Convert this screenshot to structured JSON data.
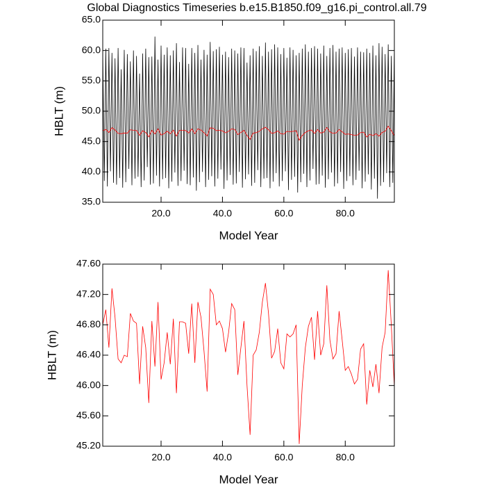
{
  "chart_data": [
    {
      "type": "line",
      "title": "Global Diagnostics Timeseries b.e15.B1850.f09_g16.pi_control.all.79",
      "xlabel": "Model Year",
      "ylabel": "HBLT (m)",
      "xlim": [
        1,
        96
      ],
      "ylim": [
        35,
        65
      ],
      "xticks": [
        {
          "value": 20,
          "label": "20.0"
        },
        {
          "value": 40,
          "label": "40.0"
        },
        {
          "value": 60,
          "label": "60.0"
        },
        {
          "value": 80,
          "label": "80.0"
        }
      ],
      "yticks": [
        {
          "value": 35,
          "label": "35.0"
        },
        {
          "value": 40,
          "label": "40.0"
        },
        {
          "value": 45,
          "label": "45.0"
        },
        {
          "value": 50,
          "label": "50.0"
        },
        {
          "value": 55,
          "label": "55.0"
        },
        {
          "value": 60,
          "label": "60.0"
        },
        {
          "value": 65,
          "label": "65.0"
        }
      ],
      "series": [
        {
          "color": "#000000",
          "x": [
            1,
            1.5,
            2,
            2.5,
            3,
            3.5,
            4,
            4.5,
            5,
            5.5,
            6,
            6.5,
            7,
            7.5,
            8,
            8.5,
            9,
            9.5,
            10,
            10.5,
            11,
            11.5,
            12,
            12.5,
            13,
            13.5,
            14,
            14.5,
            15,
            15.5,
            16,
            16.5,
            17,
            17.5,
            18,
            18.5,
            19,
            19.5,
            20,
            20.5,
            21,
            21.5,
            22,
            22.5,
            23,
            23.5,
            24,
            24.5,
            25,
            25.5,
            26,
            26.5,
            27,
            27.5,
            28,
            28.5,
            29,
            29.5,
            30,
            30.5,
            31,
            31.5,
            32,
            32.5,
            33,
            33.5,
            34,
            34.5,
            35,
            35.5,
            36,
            36.5,
            37,
            37.5,
            38,
            38.5,
            39,
            39.5,
            40,
            40.5,
            41,
            41.5,
            42,
            42.5,
            43,
            43.5,
            44,
            44.5,
            45,
            45.5,
            46,
            46.5,
            47,
            47.5,
            48,
            48.5,
            49,
            49.5,
            50,
            50.5,
            51,
            51.5,
            52,
            52.5,
            53,
            53.5,
            54,
            54.5,
            55,
            55.5,
            56,
            56.5,
            57,
            57.5,
            58,
            58.5,
            59,
            59.5,
            60,
            60.5,
            61,
            61.5,
            62,
            62.5,
            63,
            63.5,
            64,
            64.5,
            65,
            65.5,
            66,
            66.5,
            67,
            67.5,
            68,
            68.5,
            69,
            69.5,
            70,
            70.5,
            71,
            71.5,
            72,
            72.5,
            73,
            73.5,
            74,
            74.5,
            75,
            75.5,
            76,
            76.5,
            77,
            77.5,
            78,
            78.5,
            79,
            79.5,
            80,
            80.5,
            81,
            81.5,
            82,
            82.5,
            83,
            83.5,
            84,
            84.5,
            85,
            85.5,
            86,
            86.5,
            87,
            87.5,
            88,
            88.5,
            89,
            89.5,
            90,
            90.5,
            91,
            91.5,
            92,
            92.5,
            93,
            93.5,
            94,
            94.5,
            95,
            95.5,
            96
          ],
          "values": [
            59.8,
            38.5,
            60.3,
            37.6,
            60.4,
            40.1,
            59.6,
            38.2,
            58.7,
            37.9,
            60.4,
            39.0,
            56.9,
            37.4,
            60.1,
            38.3,
            59.4,
            40.5,
            58.2,
            37.8,
            60.0,
            38.9,
            59.1,
            39.2,
            56.2,
            37.5,
            59.5,
            38.6,
            60.3,
            40.8,
            58.9,
            37.9,
            59.0,
            38.1,
            62.3,
            39.4,
            58.5,
            37.6,
            60.8,
            38.8,
            59.3,
            39.0,
            60.5,
            37.3,
            59.2,
            38.4,
            60.0,
            39.9,
            61.2,
            37.7,
            58.1,
            38.5,
            60.5,
            40.2,
            60.4,
            38.0,
            57.8,
            37.8,
            60.4,
            39.1,
            59.6,
            36.9,
            60.9,
            38.3,
            58.5,
            40.0,
            60.1,
            37.5,
            59.3,
            38.7,
            61.4,
            39.3,
            59.9,
            37.6,
            60.2,
            38.9,
            60.6,
            40.4,
            59.3,
            37.2,
            59.8,
            38.6,
            58.9,
            39.5,
            60.3,
            37.9,
            60.0,
            38.1,
            59.5,
            40.0,
            60.5,
            37.4,
            60.4,
            38.8,
            58.0,
            39.6,
            59.2,
            37.7,
            60.3,
            38.2,
            59.9,
            40.3,
            60.7,
            37.5,
            59.1,
            38.9,
            61.3,
            39.0,
            59.8,
            37.3,
            60.2,
            38.4,
            61.0,
            39.8,
            60.5,
            37.6,
            59.4,
            38.5,
            60.4,
            40.1,
            58.8,
            37.0,
            60.5,
            38.7,
            60.1,
            39.2,
            59.2,
            36.6,
            59.6,
            38.3,
            60.3,
            39.7,
            61.0,
            37.5,
            59.8,
            38.6,
            60.4,
            40.5,
            60.7,
            37.9,
            60.3,
            38.0,
            59.5,
            39.4,
            60.8,
            37.4,
            59.1,
            38.8,
            60.4,
            39.9,
            60.9,
            37.6,
            59.8,
            38.1,
            60.3,
            40.0,
            60.5,
            37.2,
            59.6,
            38.5,
            60.2,
            39.3,
            60.4,
            37.8,
            59.0,
            38.7,
            60.5,
            40.2,
            59.8,
            37.3,
            59.7,
            38.4,
            60.3,
            39.6,
            59.6,
            37.1,
            60.8,
            38.9,
            59.2,
            35.6,
            61.2,
            37.7,
            60.6,
            38.3,
            59.4,
            39.8,
            61.0,
            37.5,
            59.1,
            38.2,
            60.8
          ]
        },
        {
          "color": "#ff0000",
          "x": [
            1,
            2,
            3,
            4,
            5,
            6,
            7,
            8,
            9,
            10,
            11,
            12,
            13,
            14,
            15,
            16,
            17,
            18,
            19,
            20,
            21,
            22,
            23,
            24,
            25,
            26,
            27,
            28,
            29,
            30,
            31,
            32,
            33,
            34,
            35,
            36,
            37,
            38,
            39,
            40,
            41,
            42,
            43,
            44,
            45,
            46,
            47,
            48,
            49,
            50,
            51,
            52,
            53,
            54,
            55,
            56,
            57,
            58,
            59,
            60,
            61,
            62,
            63,
            64,
            65,
            66,
            67,
            68,
            69,
            70,
            71,
            72,
            73,
            74,
            75,
            76,
            77,
            78,
            79,
            80,
            81,
            82,
            83,
            84,
            85,
            86,
            87,
            88,
            89,
            90,
            91,
            92,
            93,
            94,
            95,
            96
          ],
          "values": [
            46.8,
            47.0,
            46.5,
            47.28,
            46.9,
            46.35,
            46.3,
            46.4,
            46.38,
            46.95,
            46.85,
            46.82,
            46.02,
            46.78,
            46.5,
            45.77,
            46.85,
            46.25,
            47.1,
            46.08,
            46.3,
            46.7,
            46.28,
            46.88,
            45.9,
            46.84,
            46.84,
            46.82,
            46.42,
            47.08,
            46.3,
            47.1,
            46.9,
            46.45,
            45.92,
            47.27,
            47.2,
            46.8,
            46.85,
            46.75,
            46.44,
            46.7,
            47.08,
            47.0,
            46.14,
            46.5,
            46.85,
            46.0,
            45.35,
            46.4,
            46.47,
            46.7,
            47.1,
            47.35,
            46.95,
            46.36,
            46.45,
            46.75,
            46.3,
            46.22,
            46.68,
            46.64,
            46.68,
            46.8,
            45.23,
            46.0,
            46.5,
            46.78,
            46.9,
            46.34,
            46.98,
            46.4,
            46.55,
            47.32,
            46.6,
            46.35,
            46.42,
            46.98,
            46.6,
            46.2,
            46.25,
            46.15,
            46.02,
            46.08,
            46.48,
            46.55,
            45.75,
            46.2,
            45.98,
            46.28,
            45.9,
            46.5,
            46.7,
            47.52,
            46.8,
            45.98
          ]
        }
      ]
    },
    {
      "type": "line",
      "xlabel": "Model Year",
      "ylabel": "HBLT (m)",
      "xlim": [
        1,
        96
      ],
      "ylim": [
        45.2,
        47.6
      ],
      "xticks": [
        {
          "value": 20,
          "label": "20.0"
        },
        {
          "value": 40,
          "label": "40.0"
        },
        {
          "value": 60,
          "label": "60.0"
        },
        {
          "value": 80,
          "label": "80.0"
        }
      ],
      "yticks": [
        {
          "value": 45.2,
          "label": "45.20"
        },
        {
          "value": 45.6,
          "label": "45.60"
        },
        {
          "value": 46,
          "label": "46.00"
        },
        {
          "value": 46.4,
          "label": "46.40"
        },
        {
          "value": 46.8,
          "label": "46.80"
        },
        {
          "value": 47.2,
          "label": "47.20"
        },
        {
          "value": 47.6,
          "label": "47.60"
        }
      ],
      "series": [
        {
          "color": "#ff0000",
          "x": [
            1,
            2,
            3,
            4,
            5,
            6,
            7,
            8,
            9,
            10,
            11,
            12,
            13,
            14,
            15,
            16,
            17,
            18,
            19,
            20,
            21,
            22,
            23,
            24,
            25,
            26,
            27,
            28,
            29,
            30,
            31,
            32,
            33,
            34,
            35,
            36,
            37,
            38,
            39,
            40,
            41,
            42,
            43,
            44,
            45,
            46,
            47,
            48,
            49,
            50,
            51,
            52,
            53,
            54,
            55,
            56,
            57,
            58,
            59,
            60,
            61,
            62,
            63,
            64,
            65,
            66,
            67,
            68,
            69,
            70,
            71,
            72,
            73,
            74,
            75,
            76,
            77,
            78,
            79,
            80,
            81,
            82,
            83,
            84,
            85,
            86,
            87,
            88,
            89,
            90,
            91,
            92,
            93,
            94,
            95,
            96
          ],
          "values": [
            46.8,
            47.0,
            46.5,
            47.28,
            46.9,
            46.35,
            46.3,
            46.4,
            46.38,
            46.95,
            46.85,
            46.82,
            46.02,
            46.78,
            46.5,
            45.77,
            46.85,
            46.25,
            47.1,
            46.08,
            46.3,
            46.7,
            46.28,
            46.88,
            45.9,
            46.84,
            46.84,
            46.82,
            46.42,
            47.08,
            46.3,
            47.1,
            46.9,
            46.45,
            45.92,
            47.27,
            47.2,
            46.8,
            46.85,
            46.75,
            46.44,
            46.7,
            47.08,
            47.0,
            46.14,
            46.5,
            46.85,
            46.0,
            45.35,
            46.4,
            46.47,
            46.7,
            47.1,
            47.35,
            46.95,
            46.36,
            46.45,
            46.75,
            46.3,
            46.22,
            46.68,
            46.64,
            46.68,
            46.8,
            45.23,
            46.0,
            46.5,
            46.78,
            46.9,
            46.34,
            46.98,
            46.4,
            46.55,
            47.32,
            46.6,
            46.35,
            46.42,
            46.98,
            46.6,
            46.2,
            46.25,
            46.15,
            46.02,
            46.08,
            46.48,
            46.55,
            45.75,
            46.2,
            45.98,
            46.28,
            45.9,
            46.5,
            46.7,
            47.52,
            46.8,
            45.98
          ]
        }
      ]
    }
  ]
}
